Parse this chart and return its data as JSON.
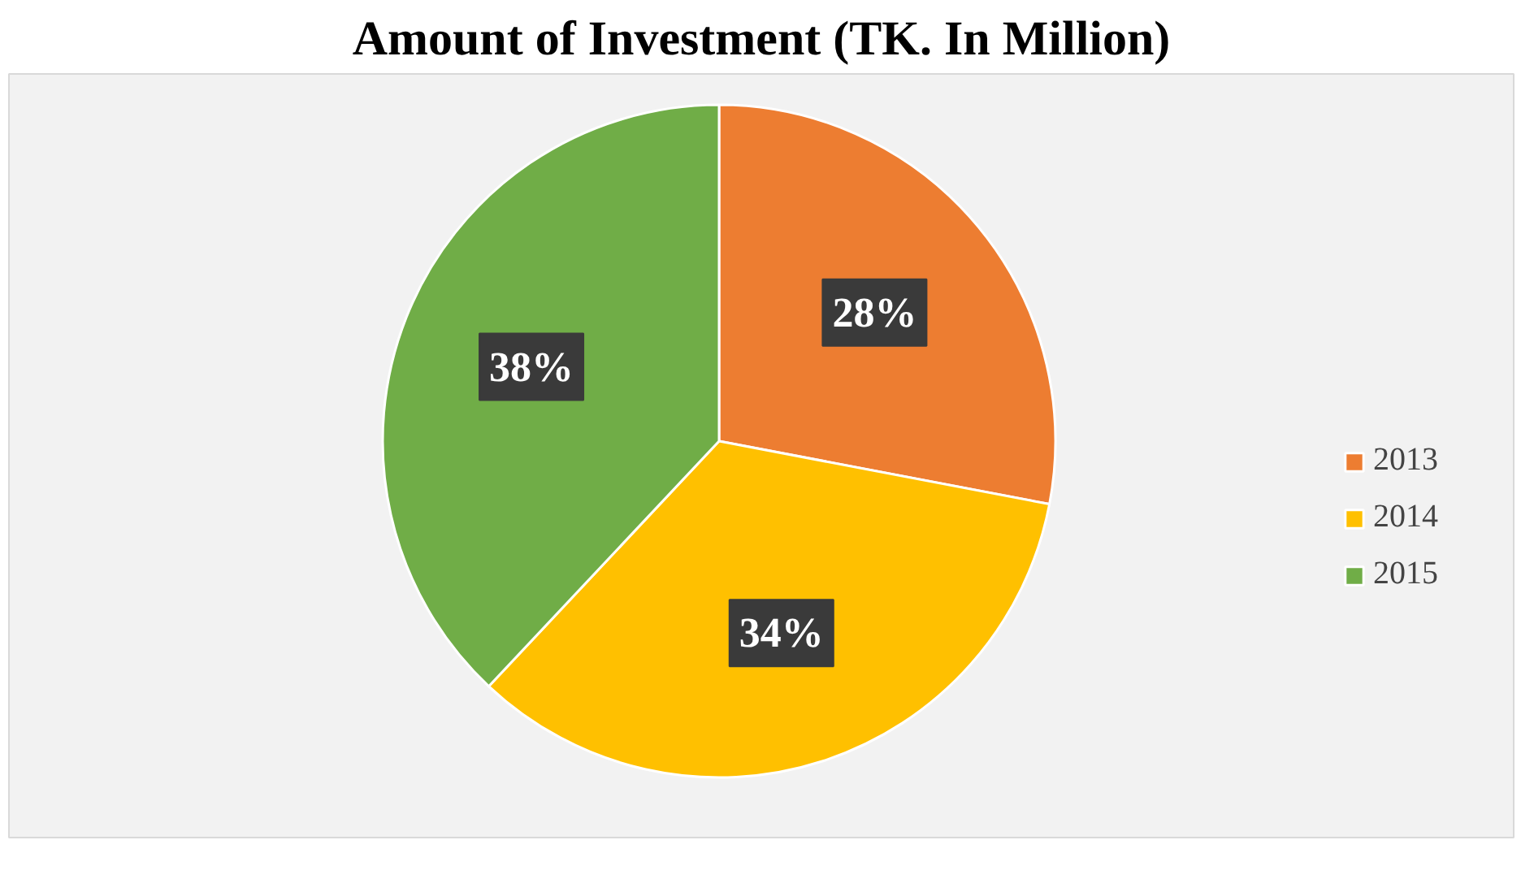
{
  "chart_data": {
    "type": "pie",
    "title": "Amount of Investment (TK. In Million)",
    "categories": [
      "2013",
      "2014",
      "2015"
    ],
    "values": [
      28,
      34,
      38
    ],
    "colors": [
      "#ed7d31",
      "#ffc000",
      "#70ad47"
    ],
    "value_labels": [
      "28%",
      "34%",
      "38%"
    ],
    "legend": "right"
  }
}
